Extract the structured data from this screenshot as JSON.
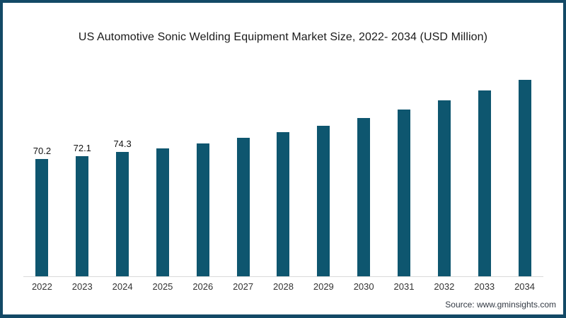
{
  "frame": {
    "border_color": "#134966",
    "background": "#ffffff"
  },
  "header": {
    "title": "US Automotive Sonic Welding Equipment Market Size, 2022- 2034 (USD Million)"
  },
  "footer": {
    "source": "Source: www.gminsights.com"
  },
  "chart_data": {
    "type": "bar",
    "title": "US Automotive Sonic Welding Equipment Market Size, 2022- 2034 (USD Million)",
    "categories": [
      "2022",
      "2023",
      "2024",
      "2025",
      "2026",
      "2027",
      "2028",
      "2029",
      "2030",
      "2031",
      "2032",
      "2033",
      "2034"
    ],
    "values": [
      70.2,
      72.1,
      74.3,
      76.5,
      79.5,
      82.8,
      86.2,
      90.1,
      94.6,
      99.8,
      105.2,
      111.5,
      117.8
    ],
    "data_labels": [
      "70.2",
      "72.1",
      "74.3"
    ],
    "xlabel": "",
    "ylabel": "",
    "ylim": [
      0,
      124
    ],
    "grid": false,
    "legend": false,
    "bar_color": "#0e566f",
    "axis_line_color": "#d9d9d9"
  }
}
